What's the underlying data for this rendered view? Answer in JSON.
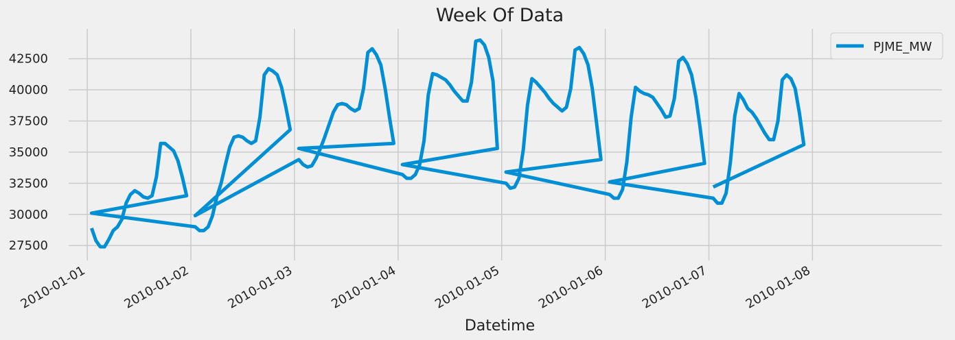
{
  "chart_data": {
    "type": "line",
    "title": "Week Of Data",
    "xlabel": "Datetime",
    "ylabel": "",
    "x_tick_labels": [
      "2010-01-01",
      "2010-01-02",
      "2010-01-03",
      "2010-01-04",
      "2010-01-05",
      "2010-01-06",
      "2010-01-07",
      "2010-01-08"
    ],
    "y_ticks": [
      27500,
      30000,
      32500,
      35000,
      37500,
      40000,
      42500
    ],
    "y_tick_labels": [
      "27500",
      "30000",
      "32500",
      "35000",
      "37500",
      "40000",
      "42500"
    ],
    "xlim_days": [
      -0.18,
      8.25
    ],
    "ylim": [
      26300,
      44900
    ],
    "grid": true,
    "legend_position": "top-right",
    "colors": {
      "line": "#008fd5",
      "background": "#f0f0f0",
      "grid": "#cbcbcb"
    },
    "series": [
      {
        "name": "PJME_MW",
        "days": [
          {
            "date": "2010-01-01",
            "values": [
              30100,
              28900,
              27900,
              27400,
              27400,
              28000,
              28700,
              29000,
              29600,
              30900,
              31600,
              31900,
              31700,
              31400,
              31300,
              31500,
              33000,
              35700,
              35700,
              35400,
              35100,
              34300,
              33000,
              31500
            ]
          },
          {
            "date": "2010-01-02",
            "values": [
              29900,
              29000,
              28700,
              28700,
              29000,
              29900,
              31400,
              32500,
              34000,
              35400,
              36200,
              36300,
              36200,
              35900,
              35700,
              35900,
              37800,
              41200,
              41700,
              41500,
              41200,
              40200,
              38600,
              36800
            ]
          },
          {
            "date": "2010-01-03",
            "values": [
              35300,
              34400,
              34000,
              33800,
              33900,
              34500,
              35300,
              36200,
              37200,
              38200,
              38800,
              38900,
              38800,
              38500,
              38300,
              38500,
              40100,
              43000,
              43300,
              42800,
              42000,
              40100,
              37800,
              35700
            ]
          },
          {
            "date": "2010-01-04",
            "values": [
              34000,
              33200,
              32900,
              32900,
              33200,
              34000,
              35900,
              39600,
              41300,
              41200,
              41000,
              40800,
              40400,
              39900,
              39500,
              39100,
              39100,
              40600,
              43900,
              44000,
              43600,
              42600,
              40700,
              35300
            ]
          },
          {
            "date": "2010-01-05",
            "values": [
              33400,
              32500,
              32100,
              32200,
              32900,
              35200,
              38800,
              40900,
              40600,
              40200,
              39800,
              39300,
              38900,
              38600,
              38300,
              38600,
              40100,
              43200,
              43400,
              42900,
              42000,
              40100,
              37300,
              34400
            ]
          },
          {
            "date": "2010-01-06",
            "values": [
              32600,
              31600,
              31300,
              31300,
              32000,
              34200,
              37800,
              40200,
              39900,
              39700,
              39600,
              39400,
              38900,
              38400,
              37800,
              37900,
              39300,
              42300,
              42600,
              42100,
              41200,
              39400,
              36900,
              34100
            ]
          },
          {
            "date": "2010-01-07",
            "values": [
              32200,
              31300,
              30900,
              30900,
              31700,
              34200,
              37900,
              39700,
              39200,
              38500,
              38200,
              37700,
              37100,
              36500,
              36000,
              36000,
              37500,
              40800,
              41200,
              40900,
              40100,
              38100,
              35600
            ]
          }
        ]
      }
    ]
  }
}
